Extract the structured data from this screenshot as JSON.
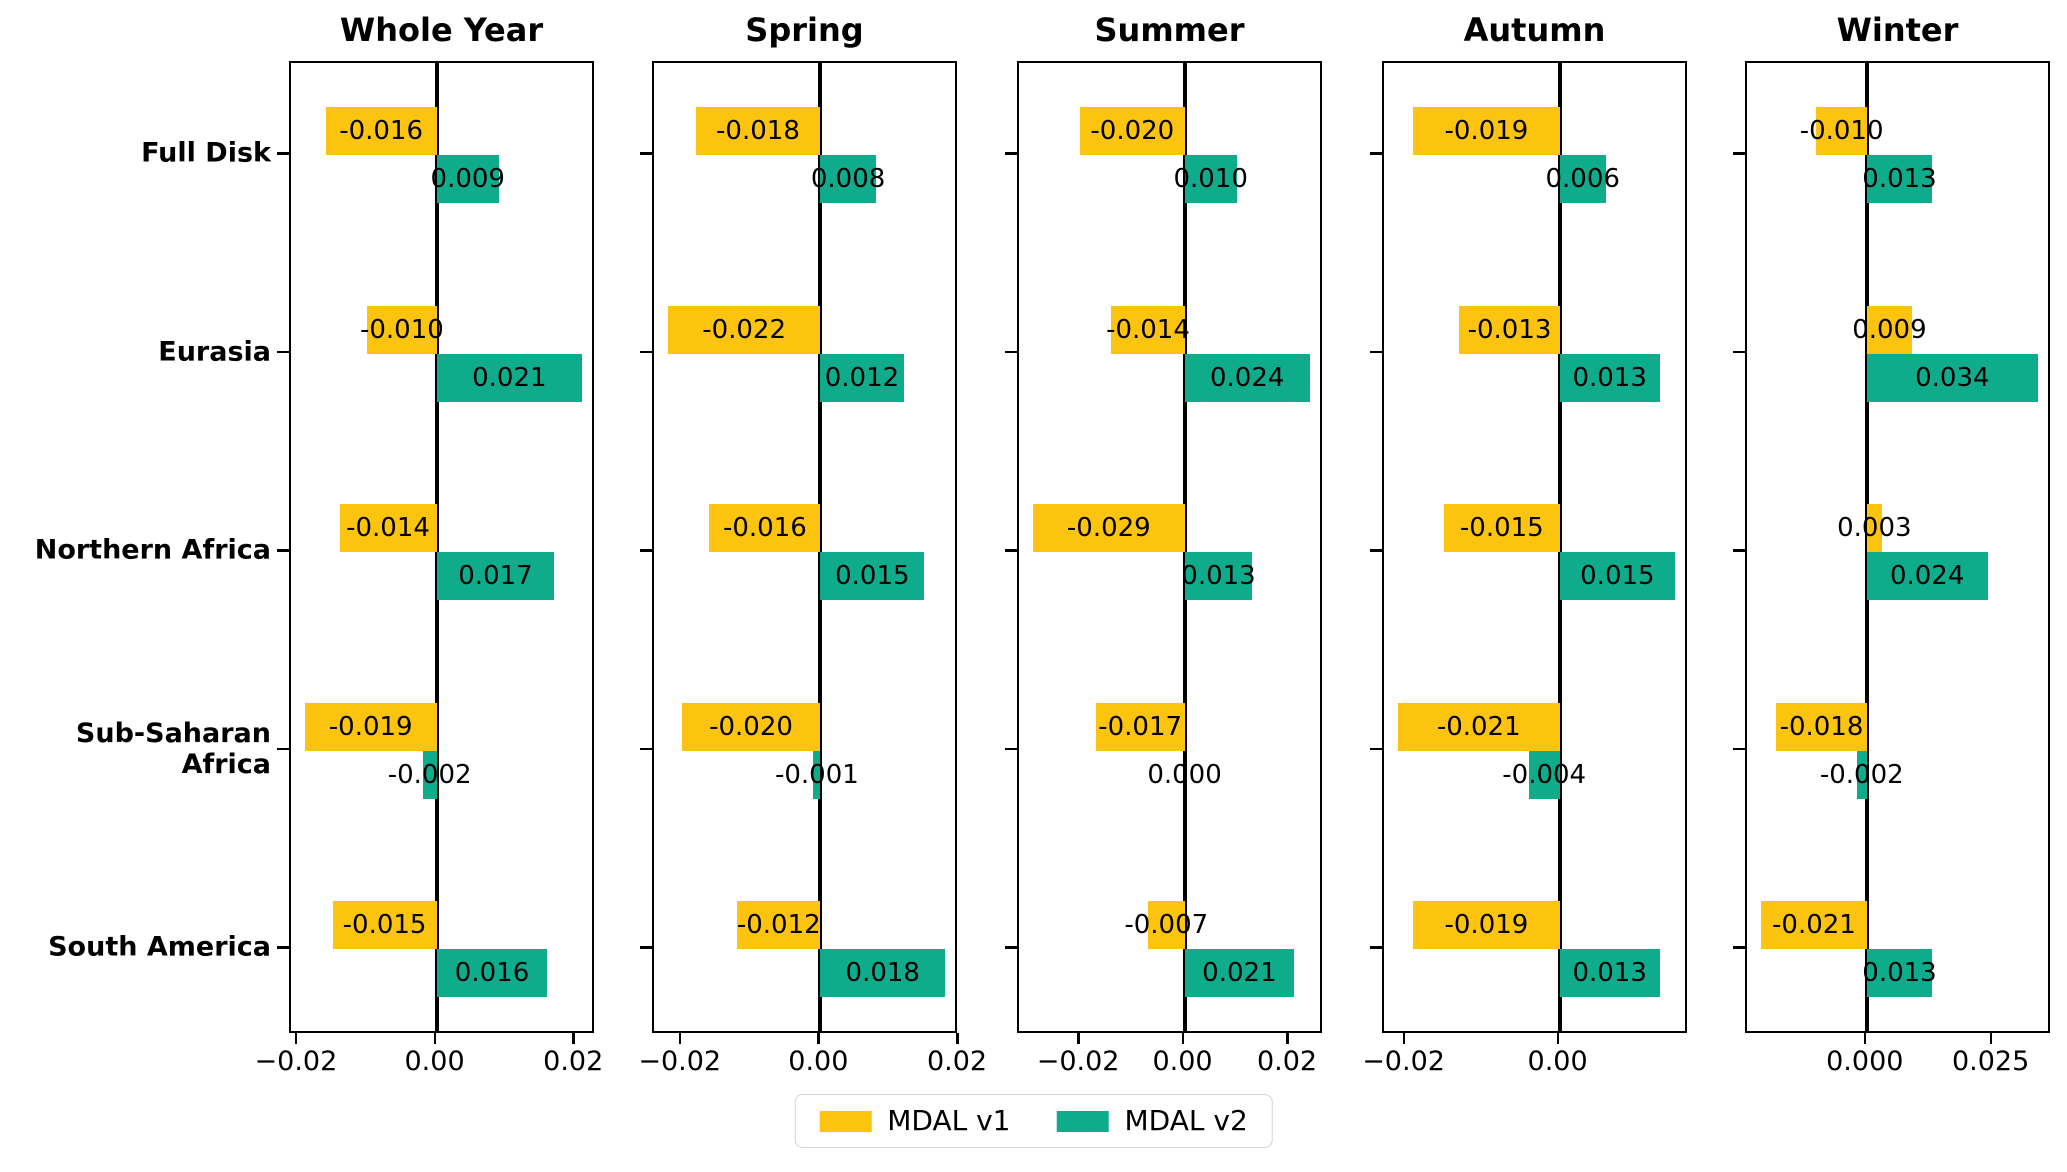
{
  "chart_data": {
    "type": "bar",
    "orientation": "horizontal",
    "grid": false,
    "categories": [
      [
        "Full Disk"
      ],
      [
        "Eurasia"
      ],
      [
        "Northern Africa"
      ],
      [
        "Sub-Saharan",
        "Africa"
      ],
      [
        "South America"
      ]
    ],
    "legend": {
      "position": "lower center",
      "entries": [
        {
          "label": "MDAL v1",
          "color": "#FCC30F"
        },
        {
          "label": "MDAL v2",
          "color": "#0FAC8C"
        }
      ]
    },
    "panels": [
      {
        "title": "Whole Year",
        "xlim": [
          -0.021,
          0.023
        ],
        "xticks": [
          {
            "value": -0.02,
            "label": "−0.02"
          },
          {
            "value": 0.0,
            "label": "0.00"
          },
          {
            "value": 0.02,
            "label": "0.02"
          }
        ],
        "series": [
          {
            "name": "MDAL v1",
            "values": [
              -0.016,
              -0.01,
              -0.014,
              -0.019,
              -0.015
            ],
            "labels": [
              "-0.016",
              "-0.010",
              "-0.014",
              "-0.019",
              "-0.015"
            ]
          },
          {
            "name": "MDAL v2",
            "values": [
              0.009,
              0.021,
              0.017,
              -0.002,
              0.016
            ],
            "labels": [
              "0.009",
              "0.021",
              "0.017",
              "-0.002",
              "0.016"
            ]
          }
        ]
      },
      {
        "title": "Spring",
        "xlim": [
          -0.024,
          0.02
        ],
        "xticks": [
          {
            "value": -0.02,
            "label": "−0.02"
          },
          {
            "value": 0.0,
            "label": "0.00"
          },
          {
            "value": 0.02,
            "label": "0.02"
          }
        ],
        "series": [
          {
            "name": "MDAL v1",
            "values": [
              -0.018,
              -0.022,
              -0.016,
              -0.02,
              -0.012
            ],
            "labels": [
              "-0.018",
              "-0.022",
              "-0.016",
              "-0.020",
              "-0.012"
            ]
          },
          {
            "name": "MDAL v2",
            "values": [
              0.008,
              0.012,
              0.015,
              -0.001,
              0.018
            ],
            "labels": [
              "0.008",
              "0.012",
              "0.015",
              "-0.001",
              "0.018"
            ]
          }
        ]
      },
      {
        "title": "Summer",
        "xlim": [
          -0.0317,
          0.0267
        ],
        "xticks": [
          {
            "value": -0.02,
            "label": "−0.02"
          },
          {
            "value": 0.0,
            "label": "0.00"
          },
          {
            "value": 0.02,
            "label": "0.02"
          }
        ],
        "series": [
          {
            "name": "MDAL v1",
            "values": [
              -0.02,
              -0.014,
              -0.029,
              -0.017,
              -0.007
            ],
            "labels": [
              "-0.020",
              "-0.014",
              "-0.029",
              "-0.017",
              "-0.007"
            ]
          },
          {
            "name": "MDAL v2",
            "values": [
              0.01,
              0.024,
              0.013,
              0.0,
              0.021
            ],
            "labels": [
              "0.010",
              "0.024",
              "0.013",
              "0.000",
              "0.021"
            ]
          }
        ]
      },
      {
        "title": "Autumn",
        "xlim": [
          -0.0228,
          0.0168
        ],
        "xticks": [
          {
            "value": -0.02,
            "label": "−0.02"
          },
          {
            "value": 0.0,
            "label": "0.00"
          }
        ],
        "series": [
          {
            "name": "MDAL v1",
            "values": [
              -0.019,
              -0.013,
              -0.015,
              -0.021,
              -0.019
            ],
            "labels": [
              "-0.019",
              "-0.013",
              "-0.015",
              "-0.021",
              "-0.019"
            ]
          },
          {
            "name": "MDAL v2",
            "values": [
              0.006,
              0.013,
              0.015,
              -0.004,
              0.013
            ],
            "labels": [
              "0.006",
              "0.013",
              "0.015",
              "-0.004",
              "0.013"
            ]
          }
        ]
      },
      {
        "title": "Winter",
        "xlim": [
          -0.0238,
          0.0368
        ],
        "xticks": [
          {
            "value": 0.0,
            "label": "0.000"
          },
          {
            "value": 0.025,
            "label": "0.025"
          }
        ],
        "series": [
          {
            "name": "MDAL v1",
            "values": [
              -0.01,
              0.009,
              0.003,
              -0.018,
              -0.021
            ],
            "labels": [
              "-0.010",
              "0.009",
              "0.003",
              "-0.018",
              "-0.021"
            ]
          },
          {
            "name": "MDAL v2",
            "values": [
              0.013,
              0.034,
              0.024,
              -0.002,
              0.013
            ],
            "labels": [
              "0.013",
              "0.034",
              "0.024",
              "-0.002",
              "0.013"
            ]
          }
        ]
      }
    ]
  }
}
